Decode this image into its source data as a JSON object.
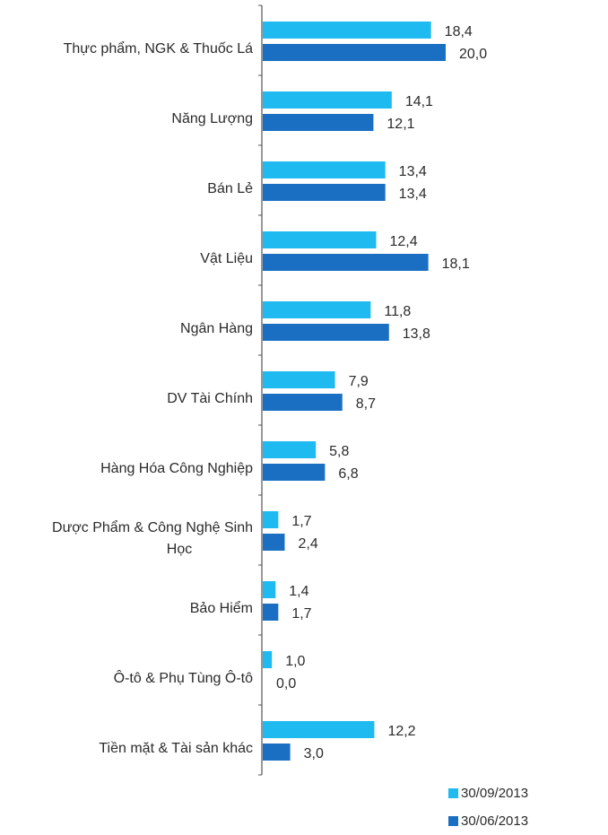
{
  "chart_data": {
    "type": "bar",
    "orientation": "horizontal",
    "categories": [
      "Thực phẩm, NGK & Thuốc Lá",
      "Năng Lượng",
      "Bán Lẻ",
      "Vật Liệu",
      "Ngân Hàng",
      "DV Tài Chính",
      "Hàng Hóa Công Nghiệp",
      "Dược Phẩm & Công Nghệ Sinh Học",
      "Bảo Hiểm",
      "Ô-tô & Phụ Tùng Ô-tô",
      "Tiền mặt & Tài sản khác"
    ],
    "series": [
      {
        "name": "30/09/2013",
        "color": "#1ebaf0",
        "values": [
          18.4,
          14.1,
          13.4,
          12.4,
          11.8,
          7.9,
          5.8,
          1.7,
          1.4,
          1.0,
          12.2
        ],
        "labels": [
          "18,4",
          "14,1",
          "13,4",
          "12,4",
          "11,8",
          "7,9",
          "5,8",
          "1,7",
          "1,4",
          "1,0",
          "12,2"
        ]
      },
      {
        "name": "30/06/2013",
        "color": "#1a6fc2",
        "values": [
          20.0,
          12.1,
          13.4,
          18.1,
          13.8,
          8.7,
          6.8,
          2.4,
          1.7,
          0.0,
          3.0
        ],
        "labels": [
          "20,0",
          "12,1",
          "13,4",
          "18,1",
          "13,8",
          "8,7",
          "6,8",
          "2,4",
          "1,7",
          "0,0",
          "3,0"
        ]
      }
    ],
    "xlim": [
      0,
      23
    ],
    "grid": false,
    "legend_position": "bottom-right"
  }
}
